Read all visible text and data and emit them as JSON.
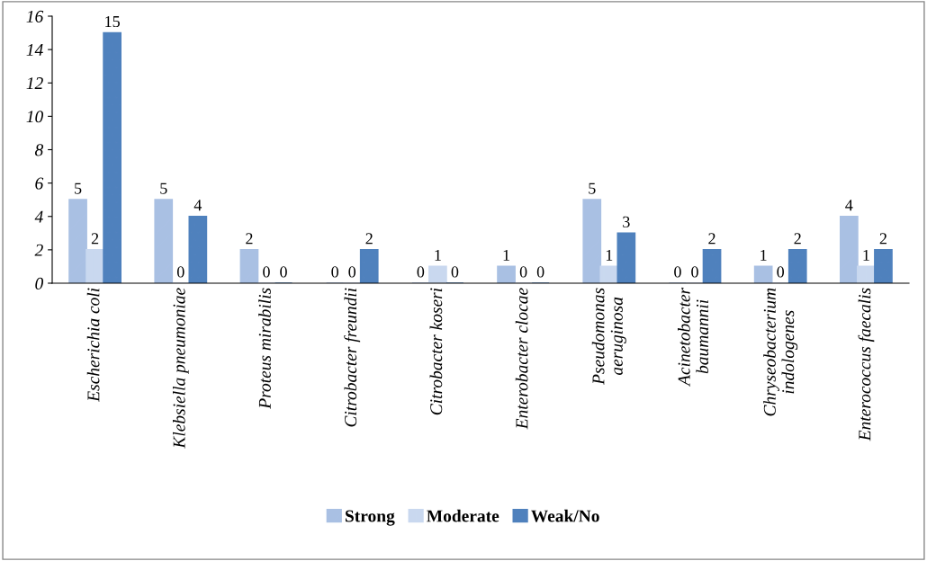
{
  "chart_data": {
    "type": "bar",
    "categories": [
      "Escherichia coli",
      "Klebsiella pneumoniae",
      "Proteus mirabilis",
      "Citrobacter freundii",
      "Citrobacter koseri",
      "Enterobacter clocae",
      "Pseudomonas\naeruginosa",
      "Acinetobacter\nbaumannii",
      "Chryseobacterium\nindologenes",
      "Enterococcus faecalis"
    ],
    "series": [
      {
        "name": "Strong",
        "color": "#a9c0e3",
        "values": [
          5,
          5,
          2,
          0,
          0,
          1,
          5,
          0,
          1,
          4
        ]
      },
      {
        "name": "Moderate",
        "color": "#c9d8ef",
        "values": [
          2,
          0,
          0,
          0,
          1,
          0,
          1,
          0,
          0,
          1
        ]
      },
      {
        "name": "Weak/No",
        "color": "#4f81bd",
        "values": [
          15,
          4,
          0,
          2,
          0,
          0,
          3,
          2,
          2,
          2
        ]
      }
    ],
    "ylim": [
      0,
      16
    ],
    "yticks": [
      0,
      2,
      4,
      6,
      8,
      10,
      12,
      14,
      16
    ],
    "data_labels": true,
    "grid": false,
    "legend": "bottom"
  }
}
